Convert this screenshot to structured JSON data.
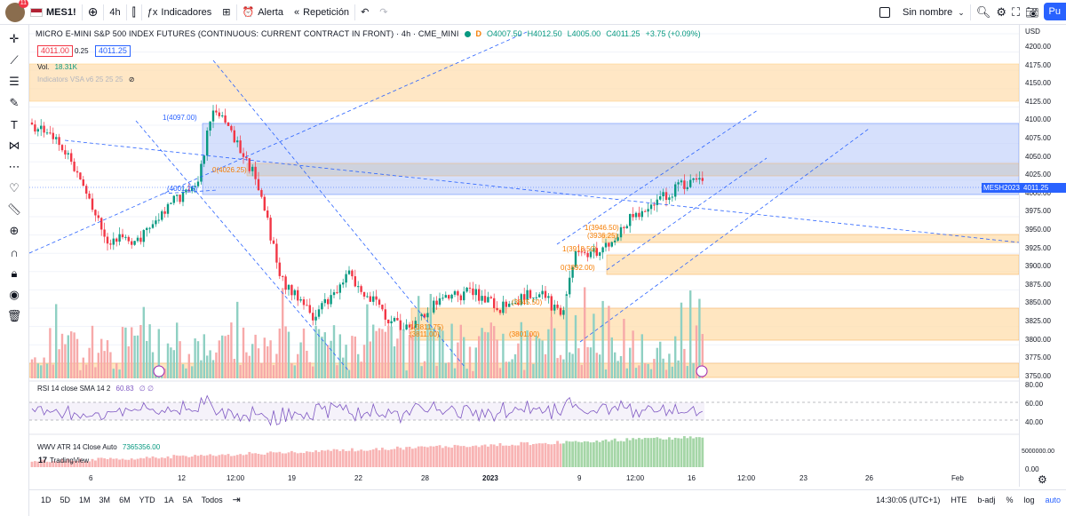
{
  "toolbar": {
    "notification_count": "11",
    "symbol": "MES1!",
    "add_symbol_icon": "plus-circle-icon",
    "interval": "4h",
    "indicators_label": "Indicadores",
    "alert_label": "Alerta",
    "replay_label": "Repetición",
    "layout_name": "Sin nombre",
    "publish_label": "Pu"
  },
  "legend": {
    "title": "MICRO E-MINI S&P 500 INDEX FUTURES (CONTINUOUS: CURRENT CONTRACT IN FRONT) · 4h · CME_MINI",
    "open": "O4007.50",
    "high": "H4012.50",
    "low": "L4005.00",
    "close": "C4011.25",
    "change": "+3.75 (+0.09%)",
    "bid": "4011.00",
    "spread": "0.25",
    "ask": "4011.25",
    "vol_label": "Vol.",
    "vol_value": "18.31K",
    "vsa_label": "Indicators VSA v6 25 25 25"
  },
  "price_axis": {
    "currency": "USD",
    "ticks": [
      "4200.00",
      "4175.00",
      "4150.00",
      "4125.00",
      "4100.00",
      "4075.00",
      "4050.00",
      "4025.00",
      "4000.00",
      "3975.00",
      "3950.00",
      "3925.00",
      "3900.00",
      "3875.00",
      "3850.00",
      "3825.00",
      "3800.00",
      "3775.00",
      "3750.00"
    ],
    "symbol_tag": "MESH2023",
    "last_price": "4011.25",
    "rsi_ticks": [
      "80.00",
      "60.00",
      "40.00"
    ],
    "atr_ticks": [
      "5000000.00",
      "0.00"
    ]
  },
  "fib_labels": [
    "1(4097.00)",
    "0(4026.25)",
    "(4001.25)",
    "1(3946.50)",
    "(3936.25)",
    "1(3918.50)",
    "0(3892.00)",
    "1(3811.75)",
    "(3811.00)",
    "(3801.00)",
    "(3845.50)"
  ],
  "rsi": {
    "label": "RSI 14 close SMA 14 2",
    "value": "60.83",
    "extra": "∅ ∅"
  },
  "atr": {
    "label": "WWV ATR 14 Close Auto",
    "value": "7365356.00"
  },
  "tradingview_label": "TradingView",
  "time_axis": [
    "6",
    "12",
    "12:00",
    "19",
    "22",
    "28",
    "2023",
    "9",
    "12:00",
    "16",
    "12:00",
    "23",
    "26",
    "Feb"
  ],
  "bottombar": {
    "ranges": [
      "1D",
      "5D",
      "1M",
      "3M",
      "6M",
      "YTD",
      "1A",
      "5A",
      "Todos"
    ],
    "clock": "14:30:05 (UTC+1)",
    "session": "HTE",
    "adj": "b-adj",
    "percent": "%",
    "log": "log",
    "auto": "auto"
  },
  "colors": {
    "up": "#089981",
    "down": "#f23645",
    "accent": "#2962ff",
    "zone_orange": "#ffe0b2",
    "zone_blue": "#c5d3fb"
  }
}
